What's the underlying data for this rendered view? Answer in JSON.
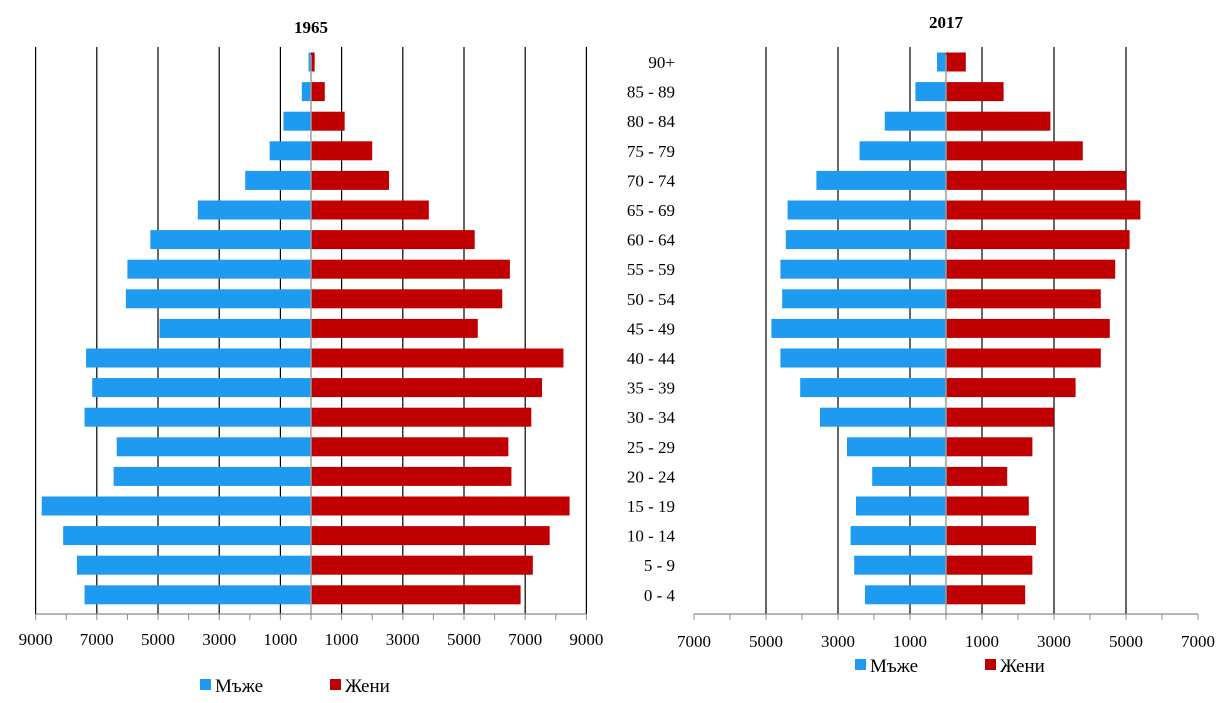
{
  "chart_data": [
    {
      "type": "bar",
      "title": "1965",
      "categories": [
        "0 - 4",
        "5 - 9",
        "10 - 14",
        "15 - 19",
        "20 - 24",
        "25 - 29",
        "30 - 34",
        "35 - 39",
        "40 - 44",
        "45 - 49",
        "50 - 54",
        "55 - 59",
        "60 - 64",
        "65 - 69",
        "70 - 74",
        "75 - 79",
        "80 - 84",
        "85 - 89",
        "90+"
      ],
      "series": [
        {
          "name": "Мъже",
          "color": "#1E9BF0",
          "values": [
            7400,
            7650,
            8100,
            8800,
            6450,
            6350,
            7400,
            7150,
            7350,
            4950,
            6050,
            6000,
            5250,
            3700,
            2150,
            1350,
            900,
            300,
            80
          ]
        },
        {
          "name": "Жени",
          "color": "#C00000",
          "values": [
            6850,
            7250,
            7800,
            8450,
            6550,
            6450,
            7200,
            7550,
            8250,
            5450,
            6250,
            6500,
            5350,
            3850,
            2550,
            2000,
            1100,
            450,
            120
          ]
        }
      ],
      "xlim": [
        -9000,
        9000
      ],
      "x_tick_labels": [
        "9000",
        "7000",
        "5000",
        "3000",
        "1000",
        "1000",
        "3000",
        "5000",
        "7000",
        "9000"
      ],
      "x_ticks": [
        -9000,
        -7000,
        -5000,
        -3000,
        -1000,
        1000,
        3000,
        5000,
        7000,
        9000
      ],
      "gridlines": [
        -9000,
        -7000,
        -5000,
        -3000,
        -1000,
        1000,
        3000,
        5000,
        7000,
        9000
      ],
      "show_category_labels": false,
      "legend": "bottom"
    },
    {
      "type": "bar",
      "title": "2017",
      "categories": [
        "0 - 4",
        "5 - 9",
        "10 - 14",
        "15 - 19",
        "20 - 24",
        "25 - 29",
        "30 - 34",
        "35 - 39",
        "40 - 44",
        "45 - 49",
        "50 - 54",
        "55 - 59",
        "60 - 64",
        "65 - 69",
        "70 - 74",
        "75 - 79",
        "80 - 84",
        "85 - 89",
        "90+"
      ],
      "series": [
        {
          "name": "Мъже",
          "color": "#1E9BF0",
          "values": [
            2250,
            2550,
            2650,
            2500,
            2050,
            2750,
            3500,
            4050,
            4600,
            4850,
            4550,
            4600,
            4450,
            4400,
            3600,
            2400,
            1700,
            850,
            250
          ]
        },
        {
          "name": "Жени",
          "color": "#C00000",
          "values": [
            2200,
            2400,
            2500,
            2300,
            1700,
            2400,
            3000,
            3600,
            4300,
            4550,
            4300,
            4700,
            5100,
            5400,
            5000,
            3800,
            2900,
            1600,
            550
          ]
        }
      ],
      "xlim": [
        -7000,
        7000
      ],
      "x_tick_labels": [
        "7000",
        "5000",
        "3000",
        "1000",
        "1000",
        "3000",
        "5000",
        "7000"
      ],
      "x_ticks": [
        -7000,
        -5000,
        -3000,
        -1000,
        1000,
        3000,
        5000,
        7000
      ],
      "gridlines": [
        -5000,
        -3000,
        -1000,
        1000,
        3000,
        5000
      ],
      "show_category_labels": true,
      "legend": "bottom"
    }
  ]
}
